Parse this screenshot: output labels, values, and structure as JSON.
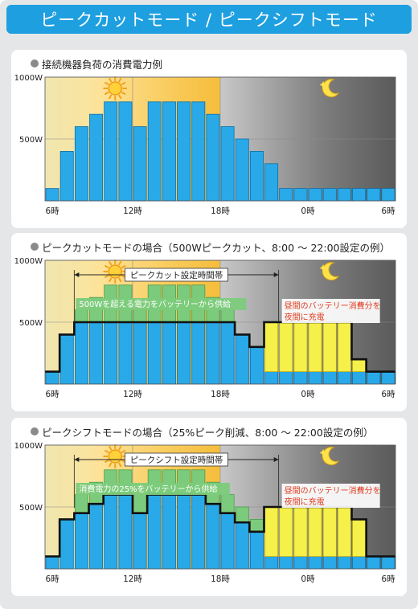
{
  "title": "ピークカットモード / ピークシフトモード",
  "panels": [
    {
      "title": "接続機器負荷の消費電力例"
    },
    {
      "title": "ピークカットモードの場合（500Wピークカット、8:00 ～ 22:00設定の例）"
    },
    {
      "title": "ピークシフトモードの場合（25%ピーク削減、8:00 ～ 22:00設定の例）"
    }
  ],
  "colors": {
    "load": "#29a9e8",
    "battery": "#7ccb7c",
    "charge": "#f5f04a",
    "limit": "#111111"
  },
  "chart_data": [
    {
      "type": "bar",
      "categories": [
        "6",
        "7",
        "8",
        "9",
        "10",
        "11",
        "12",
        "13",
        "14",
        "15",
        "16",
        "17",
        "18",
        "19",
        "20",
        "21",
        "22",
        "23",
        "0",
        "1",
        "2",
        "3",
        "4",
        "5"
      ],
      "ylim": [
        0,
        1000
      ],
      "y_ticks": [
        "1000W",
        "500W"
      ],
      "x_ticks": [
        "6時",
        "12時",
        "18時",
        "0時",
        "6時"
      ],
      "load": [
        100,
        400,
        600,
        700,
        800,
        800,
        600,
        800,
        800,
        800,
        800,
        700,
        600,
        500,
        400,
        300,
        100,
        100,
        100,
        100,
        100,
        100,
        100,
        100
      ],
      "icons": [
        "sun-icon",
        "moon-icon"
      ]
    },
    {
      "type": "bar",
      "categories": [
        "6",
        "7",
        "8",
        "9",
        "10",
        "11",
        "12",
        "13",
        "14",
        "15",
        "16",
        "17",
        "18",
        "19",
        "20",
        "21",
        "22",
        "23",
        "0",
        "1",
        "2",
        "3",
        "4",
        "5"
      ],
      "ylim": [
        0,
        1000
      ],
      "y_ticks": [
        "1000W",
        "500W"
      ],
      "x_ticks": [
        "6時",
        "12時",
        "18時",
        "0時",
        "6時"
      ],
      "grid_load": [
        100,
        400,
        500,
        500,
        500,
        500,
        500,
        500,
        500,
        500,
        500,
        500,
        500,
        400,
        300,
        500,
        500,
        500,
        500,
        500,
        500,
        200,
        100,
        100
      ],
      "battery_supply": [
        0,
        0,
        100,
        200,
        300,
        300,
        100,
        300,
        300,
        300,
        300,
        200,
        100,
        0,
        0,
        0,
        0,
        0,
        0,
        0,
        0,
        0,
        0,
        0
      ],
      "night_charge": [
        0,
        0,
        0,
        0,
        0,
        0,
        0,
        0,
        0,
        0,
        0,
        0,
        0,
        0,
        0,
        400,
        400,
        400,
        400,
        400,
        400,
        100,
        0,
        0
      ],
      "period_label": "ピークカット設定時間帯",
      "annotation_day": "500Wを超える電力をバッテリーから供給",
      "annotation_night": [
        "昼間のバッテリー消費分を",
        "夜間に充電"
      ],
      "icons": [
        "sun-icon",
        "moon-icon"
      ]
    },
    {
      "type": "bar",
      "categories": [
        "6",
        "7",
        "8",
        "9",
        "10",
        "11",
        "12",
        "13",
        "14",
        "15",
        "16",
        "17",
        "18",
        "19",
        "20",
        "21",
        "22",
        "23",
        "0",
        "1",
        "2",
        "3",
        "4",
        "5"
      ],
      "ylim": [
        0,
        1000
      ],
      "y_ticks": [
        "1000W",
        "500W"
      ],
      "x_ticks": [
        "6時",
        "12時",
        "18時",
        "0時",
        "6時"
      ],
      "grid_load": [
        100,
        400,
        450,
        525,
        600,
        600,
        450,
        600,
        600,
        600,
        600,
        525,
        450,
        375,
        300,
        500,
        500,
        500,
        500,
        500,
        500,
        400,
        100,
        100
      ],
      "battery_supply": [
        0,
        0,
        150,
        175,
        200,
        200,
        150,
        200,
        200,
        200,
        200,
        175,
        150,
        125,
        100,
        0,
        0,
        0,
        0,
        0,
        0,
        0,
        0,
        0
      ],
      "night_charge": [
        0,
        0,
        0,
        0,
        0,
        0,
        0,
        0,
        0,
        0,
        0,
        0,
        0,
        0,
        0,
        400,
        400,
        400,
        400,
        400,
        400,
        300,
        0,
        0
      ],
      "period_label": "ピークシフト設定時間帯",
      "annotation_day": "消費電力の25%をバッテリーから供給",
      "annotation_night": [
        "昼間のバッテリー消費分を",
        "夜間に充電"
      ],
      "icons": [
        "sun-icon",
        "moon-icon"
      ]
    }
  ]
}
